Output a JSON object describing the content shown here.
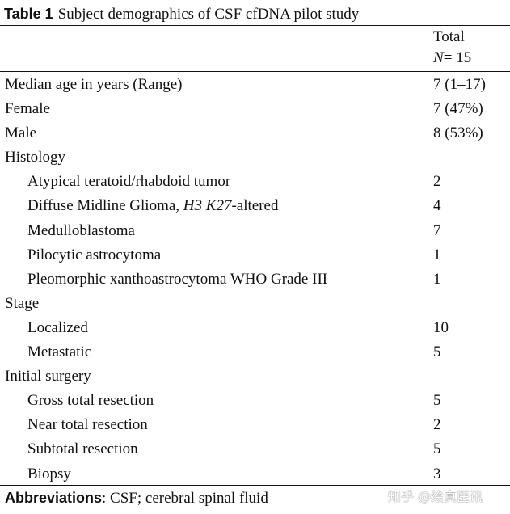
{
  "table": {
    "caption_label": "Table 1",
    "caption_text": "Subject demographics of CSF cfDNA pilot study",
    "column_header": {
      "line1": "Total",
      "n_symbol": "N",
      "n_value": "= 15"
    },
    "rows": [
      {
        "label": "Median age in years (Range)",
        "value": "7 (1–17)",
        "indent": false
      },
      {
        "label": "Female",
        "value": "7 (47%)",
        "indent": false
      },
      {
        "label": "Male",
        "value": "8 (53%)",
        "indent": false
      },
      {
        "label": "Histology",
        "value": "",
        "indent": false
      },
      {
        "label": "Atypical teratoid/rhabdoid tumor",
        "value": "2",
        "indent": true
      },
      {
        "label_prefix": "Diffuse Midline Glioma, ",
        "label_italic": "H3 K27",
        "label_suffix": "-altered",
        "value": "4",
        "indent": true
      },
      {
        "label": "Medulloblastoma",
        "value": "7",
        "indent": true
      },
      {
        "label": "Pilocytic astrocytoma",
        "value": "1",
        "indent": true
      },
      {
        "label": "Pleomorphic xanthoastrocytoma WHO Grade III",
        "value": "1",
        "indent": true
      },
      {
        "label": "Stage",
        "value": "",
        "indent": false
      },
      {
        "label": "Localized",
        "value": "10",
        "indent": true
      },
      {
        "label": "Metastatic",
        "value": "5",
        "indent": true
      },
      {
        "label": "Initial surgery",
        "value": "",
        "indent": false
      },
      {
        "label": "Gross total resection",
        "value": "5",
        "indent": true
      },
      {
        "label": "Near total resection",
        "value": "2",
        "indent": true
      },
      {
        "label": "Subtotal resection",
        "value": "5",
        "indent": true
      },
      {
        "label": "Biopsy",
        "value": "3",
        "indent": true
      }
    ],
    "footnote": {
      "label": "Abbreviations",
      "text": ": CSF; cerebral spinal fluid"
    }
  },
  "watermark": "知乎 @绘真医讯"
}
